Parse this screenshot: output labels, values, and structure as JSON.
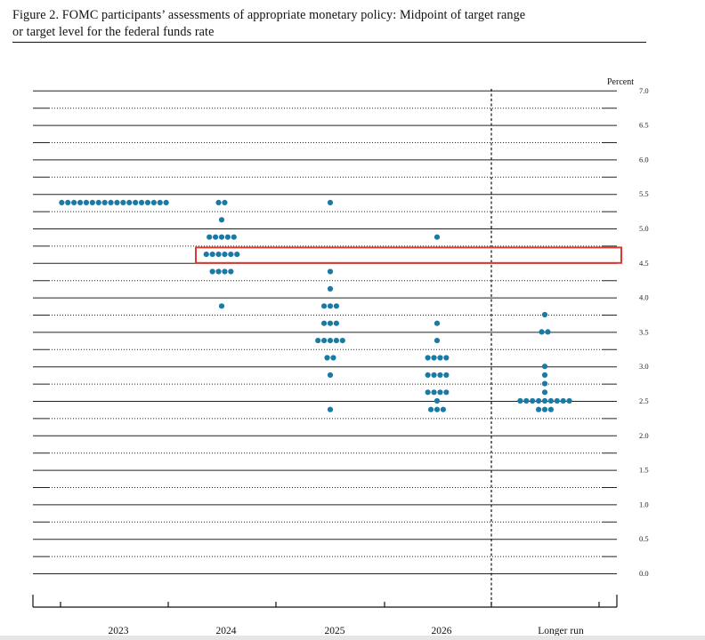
{
  "caption": {
    "line1": "Figure 2.  FOMC participants’ assessments of appropriate monetary policy:  Midpoint of target range",
    "line2": "or target level for the federal funds rate"
  },
  "colors": {
    "dot": "#1a7aa6",
    "highlight": "#e03a2f",
    "grid": "#222222"
  },
  "chart_data": {
    "type": "scatter",
    "title": "FOMC participants’ assessments of appropriate monetary policy: Midpoint of target range or target level for the federal funds rate",
    "ylabel": "Percent",
    "ylim": [
      0.0,
      7.0
    ],
    "y_ticks": [
      "0.0",
      "0.5",
      "1.0",
      "1.5",
      "2.0",
      "2.5",
      "3.0",
      "3.5",
      "4.0",
      "4.5",
      "5.0",
      "5.5",
      "6.0",
      "6.5",
      "7.0"
    ],
    "categories": [
      "2023",
      "2024",
      "2025",
      "2026",
      "Longer run"
    ],
    "grid": true,
    "legend": "none",
    "annotation": {
      "type": "highlight-box",
      "category": "2024",
      "y_range": [
        4.5,
        4.75
      ]
    },
    "points": [
      {
        "category": "2023",
        "y": 5.375,
        "count": 18
      },
      {
        "category": "2024",
        "y": 5.375,
        "count": 2
      },
      {
        "category": "2024",
        "y": 5.125,
        "count": 1
      },
      {
        "category": "2024",
        "y": 4.875,
        "count": 5
      },
      {
        "category": "2024",
        "y": 4.625,
        "count": 6
      },
      {
        "category": "2024",
        "y": 4.375,
        "count": 4
      },
      {
        "category": "2024",
        "y": 3.875,
        "count": 1
      },
      {
        "category": "2025",
        "y": 5.375,
        "count": 1
      },
      {
        "category": "2025",
        "y": 4.375,
        "count": 1
      },
      {
        "category": "2025",
        "y": 4.125,
        "count": 1
      },
      {
        "category": "2025",
        "y": 3.875,
        "count": 3
      },
      {
        "category": "2025",
        "y": 3.625,
        "count": 3
      },
      {
        "category": "2025",
        "y": 3.375,
        "count": 5
      },
      {
        "category": "2025",
        "y": 3.125,
        "count": 2
      },
      {
        "category": "2025",
        "y": 2.875,
        "count": 1
      },
      {
        "category": "2025",
        "y": 2.375,
        "count": 1
      },
      {
        "category": "2026",
        "y": 4.875,
        "count": 1
      },
      {
        "category": "2026",
        "y": 3.625,
        "count": 1
      },
      {
        "category": "2026",
        "y": 3.375,
        "count": 1
      },
      {
        "category": "2026",
        "y": 3.125,
        "count": 4
      },
      {
        "category": "2026",
        "y": 2.875,
        "count": 4
      },
      {
        "category": "2026",
        "y": 2.625,
        "count": 4
      },
      {
        "category": "2026",
        "y": 2.5,
        "count": 1
      },
      {
        "category": "2026",
        "y": 2.375,
        "count": 3
      },
      {
        "category": "Longer run",
        "y": 3.75,
        "count": 1
      },
      {
        "category": "Longer run",
        "y": 3.5,
        "count": 2
      },
      {
        "category": "Longer run",
        "y": 3.0,
        "count": 1
      },
      {
        "category": "Longer run",
        "y": 2.875,
        "count": 1
      },
      {
        "category": "Longer run",
        "y": 2.75,
        "count": 1
      },
      {
        "category": "Longer run",
        "y": 2.625,
        "count": 1
      },
      {
        "category": "Longer run",
        "y": 2.5,
        "count": 9
      },
      {
        "category": "Longer run",
        "y": 2.375,
        "count": 3
      }
    ]
  }
}
